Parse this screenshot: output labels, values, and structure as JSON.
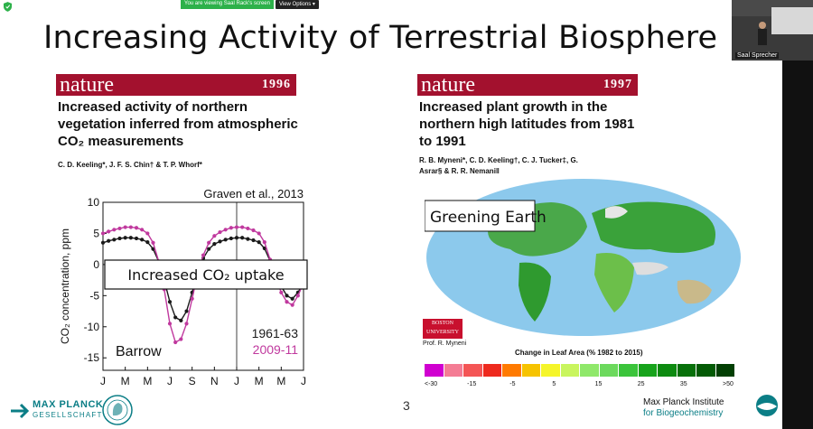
{
  "meeting": {
    "share_message": "You are viewing Saal Rack's screen",
    "view_options": "View Options",
    "participant_name": "Saal Sprecher"
  },
  "slide": {
    "title": "Increasing Activity of Terrestrial Biosphere",
    "page_number": "3",
    "left_paper": {
      "journal": "nature",
      "year": "1996",
      "title": "Increased activity of northern vegetation inferred from atmospheric CO₂ measurements",
      "authors": "C. D. Keeling*, J. F. S. Chin† & T. P. Whorf*"
    },
    "right_paper": {
      "journal": "nature",
      "year": "1997",
      "title": "Increased plant growth in the northern high latitudes from 1981 to 1991",
      "authors": "R. B. Myneni*, C. D. Keeling†, C. J. Tucker‡, G. Asrar§ & R. R. Nemani‖"
    },
    "map": {
      "label": "Greening Earth",
      "university": "BOSTON UNIVERSITY",
      "credit": "Prof. R. Myneni",
      "legend_title": "Change in Leaf Area (% 1982 to 2015)",
      "legend_ticks": [
        "<-30",
        "-15",
        "-5",
        "5",
        "15",
        "25",
        "35",
        ">50"
      ],
      "legend_colors": [
        "#d000d0",
        "#f47c94",
        "#f45555",
        "#ee2a1e",
        "#ff7a00",
        "#f6c300",
        "#f5f52a",
        "#c9f55e",
        "#8fe86a",
        "#6cd95d",
        "#3bc43b",
        "#17a31b",
        "#0d8a10",
        "#07700a",
        "#035a05",
        "#023f03"
      ]
    },
    "footer": {
      "mpg_line1": "MAX PLANCK",
      "mpg_line2": "GESELLSCHAFT",
      "institute_line1": "Max Planck Institute",
      "institute_line2": "for Biogeochemistry"
    }
  },
  "chart_data": {
    "type": "scatter",
    "citation": "Graven et al., 2013",
    "annotation": "Increased CO₂ uptake",
    "site_label": "Barrow",
    "ylabel": "CO₂ concentration, ppm",
    "ylim": [
      -17,
      10
    ],
    "yticks": [
      10,
      5,
      0,
      -5,
      -10,
      -15
    ],
    "xticks": [
      "J",
      "M",
      "M",
      "J",
      "S",
      "N",
      "J",
      "M",
      "M",
      "J"
    ],
    "series": [
      {
        "name": "1961-63",
        "color": "#1a1a1a",
        "x": [
          0,
          0.5,
          1,
          1.5,
          2,
          2.5,
          3,
          3.5,
          4,
          4.5,
          5,
          5.5,
          6,
          6.5,
          7,
          7.5,
          8,
          8.5,
          9,
          9.5,
          10,
          10.5,
          11,
          11.5,
          12,
          12.5,
          13,
          13.5,
          14,
          14.5,
          15,
          15.5,
          16,
          16.5,
          17,
          17.5,
          18
        ],
        "y": [
          3.5,
          3.8,
          4,
          4.2,
          4.3,
          4.3,
          4.2,
          4,
          3.6,
          2.5,
          0.5,
          -2.5,
          -6,
          -8.5,
          -9,
          -7.5,
          -4.5,
          -1.5,
          1,
          2.5,
          3.3,
          3.7,
          4,
          4.2,
          4.3,
          4.3,
          4.1,
          3.9,
          3.6,
          2.6,
          0.6,
          -1.5,
          -3.5,
          -5,
          -5.5,
          -4.5,
          -3
        ]
      },
      {
        "name": "2009-11",
        "color": "#c0399e",
        "x": [
          0,
          0.5,
          1,
          1.5,
          2,
          2.5,
          3,
          3.5,
          4,
          4.5,
          5,
          5.5,
          6,
          6.5,
          7,
          7.5,
          8,
          8.5,
          9,
          9.5,
          10,
          10.5,
          11,
          11.5,
          12,
          12.5,
          13,
          13.5,
          14,
          14.5,
          15,
          15.5,
          16,
          16.5,
          17,
          17.5,
          18
        ],
        "y": [
          5,
          5.3,
          5.6,
          5.8,
          6,
          6,
          5.9,
          5.6,
          5,
          3.5,
          0.5,
          -4,
          -9.5,
          -12.5,
          -12,
          -9.5,
          -5.5,
          -1.5,
          1.5,
          3.5,
          4.6,
          5.2,
          5.6,
          5.9,
          6,
          6,
          5.8,
          5.5,
          5,
          3.6,
          0.8,
          -2,
          -4.5,
          -6,
          -6.5,
          -5,
          -3
        ]
      }
    ]
  }
}
